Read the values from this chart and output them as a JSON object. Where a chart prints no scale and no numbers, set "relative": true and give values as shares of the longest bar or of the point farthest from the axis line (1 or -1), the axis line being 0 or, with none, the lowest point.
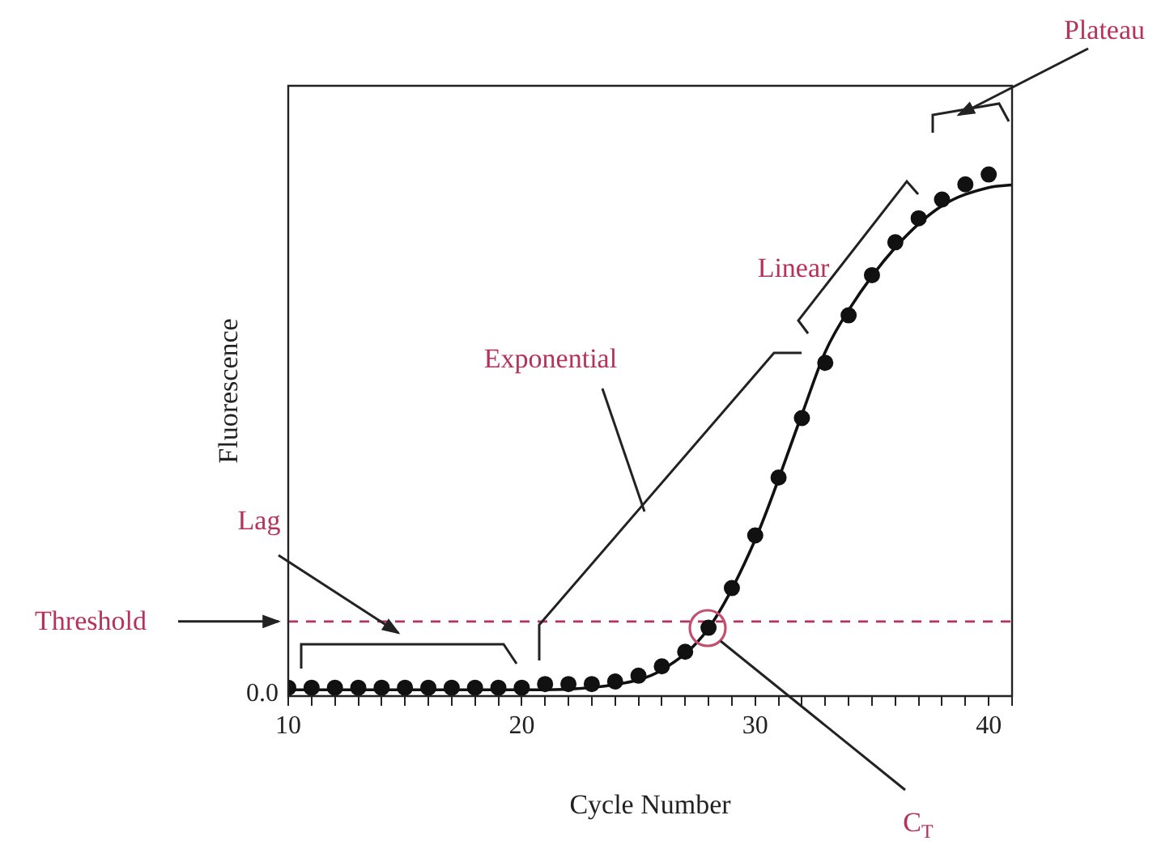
{
  "chart_data": {
    "type": "scatter",
    "xlabel": "Cycle Number",
    "ylabel": "Fluorescence",
    "relative": true,
    "x": [
      10,
      11,
      12,
      13,
      14,
      15,
      16,
      17,
      18,
      19,
      20,
      21,
      22,
      23,
      24,
      25,
      26,
      27,
      28,
      29,
      30,
      31,
      32,
      33,
      34,
      35,
      36,
      37,
      38,
      39,
      40
    ],
    "series": [
      {
        "color": "#111111",
        "marker": "circle",
        "values": [
          0.016,
          0.016,
          0.016,
          0.016,
          0.016,
          0.016,
          0.016,
          0.016,
          0.016,
          0.016,
          0.016,
          0.023,
          0.023,
          0.023,
          0.028,
          0.039,
          0.057,
          0.085,
          0.131,
          0.207,
          0.308,
          0.419,
          0.533,
          0.639,
          0.73,
          0.807,
          0.87,
          0.916,
          0.952,
          0.981,
          1
        ]
      },
      {
        "type": "line",
        "color": "#111111",
        "marker": "none",
        "x": [
          10,
          20,
          24,
          26,
          28,
          30,
          32,
          33,
          34,
          36,
          38,
          40,
          41
        ],
        "values": [
          0.012,
          0.012,
          0.022,
          0.05,
          0.13,
          0.3,
          0.54,
          0.66,
          0.74,
          0.86,
          0.94,
          0.975,
          0.98
        ]
      }
    ],
    "xlim": [
      10,
      41
    ],
    "xticks": [
      {
        "value": 10,
        "label": "10"
      },
      {
        "value": 11,
        "label": null
      },
      {
        "value": 12,
        "label": null
      },
      {
        "value": 13,
        "label": null
      },
      {
        "value": 14,
        "label": null
      },
      {
        "value": 15,
        "label": null
      },
      {
        "value": 16,
        "label": null
      },
      {
        "value": 17,
        "label": null
      },
      {
        "value": 18,
        "label": null
      },
      {
        "value": 19,
        "label": null
      },
      {
        "value": 20,
        "label": "20"
      },
      {
        "value": 21,
        "label": null
      },
      {
        "value": 22,
        "label": null
      },
      {
        "value": 23,
        "label": null
      },
      {
        "value": 24,
        "label": null
      },
      {
        "value": 25,
        "label": null
      },
      {
        "value": 26,
        "label": null
      },
      {
        "value": 27,
        "label": null
      },
      {
        "value": 28,
        "label": null
      },
      {
        "value": 29,
        "label": null
      },
      {
        "value": 30,
        "label": "30"
      },
      {
        "value": 31,
        "label": null
      },
      {
        "value": 32,
        "label": null
      },
      {
        "value": 33,
        "label": null
      },
      {
        "value": 34,
        "label": null
      },
      {
        "value": 35,
        "label": null
      },
      {
        "value": 36,
        "label": null
      },
      {
        "value": 37,
        "label": null
      },
      {
        "value": 38,
        "label": null
      },
      {
        "value": 39,
        "label": null
      },
      {
        "value": 40,
        "label": "40"
      },
      {
        "value": 41,
        "label": null
      }
    ],
    "ref_lines": [
      {
        "axis": "y",
        "value": 0.143,
        "label": "Threshold",
        "color": "#b5325a",
        "line_style": "dashed"
      }
    ],
    "annotations": [
      "Lag",
      "Exponential",
      "Linear",
      "Plateau",
      "C$_{T}$",
      "0.0"
    ],
    "grid": false,
    "legend": false
  }
}
